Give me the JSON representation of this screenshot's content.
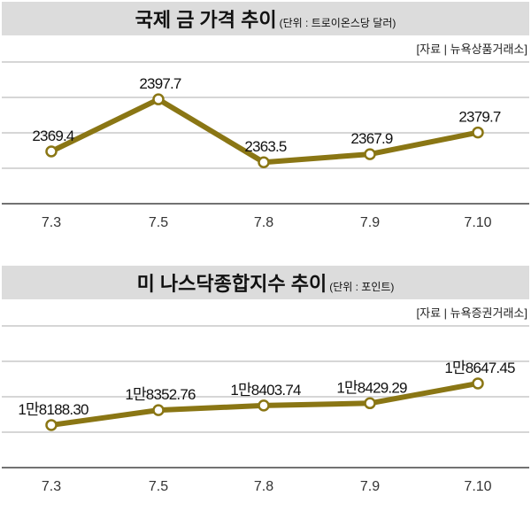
{
  "line_color": "#8a7614",
  "chart_data": [
    {
      "type": "line",
      "title": "국제 금 가격 추이",
      "unit": "(단위 : 트로이온스당 달러)",
      "source": "[자료 | 뉴욕상품거래소]",
      "categories": [
        "7.3",
        "7.5",
        "7.8",
        "7.9",
        "7.10"
      ],
      "values": [
        2369.4,
        2397.7,
        2363.5,
        2367.9,
        2379.7
      ],
      "value_labels": [
        "2369.4",
        "2397.7",
        "2363.5",
        "2367.9",
        "2379.7"
      ],
      "ylim": [
        2341,
        2418
      ],
      "grid": true
    },
    {
      "type": "line",
      "title": "미 나스닥종합지수 추이",
      "unit": "(단위 : 포인트)",
      "source": "[자료 | 뉴욕증권거래소]",
      "categories": [
        "7.3",
        "7.5",
        "7.8",
        "7.9",
        "7.10"
      ],
      "values": [
        18188.3,
        18352.76,
        18403.74,
        18429.29,
        18647.45
      ],
      "value_labels": [
        "1만8188.30",
        "1만8352.76",
        "1만8403.74",
        "1만8429.29",
        "1만8647.45"
      ],
      "ylim": [
        17719,
        19282
      ],
      "grid": true
    }
  ]
}
